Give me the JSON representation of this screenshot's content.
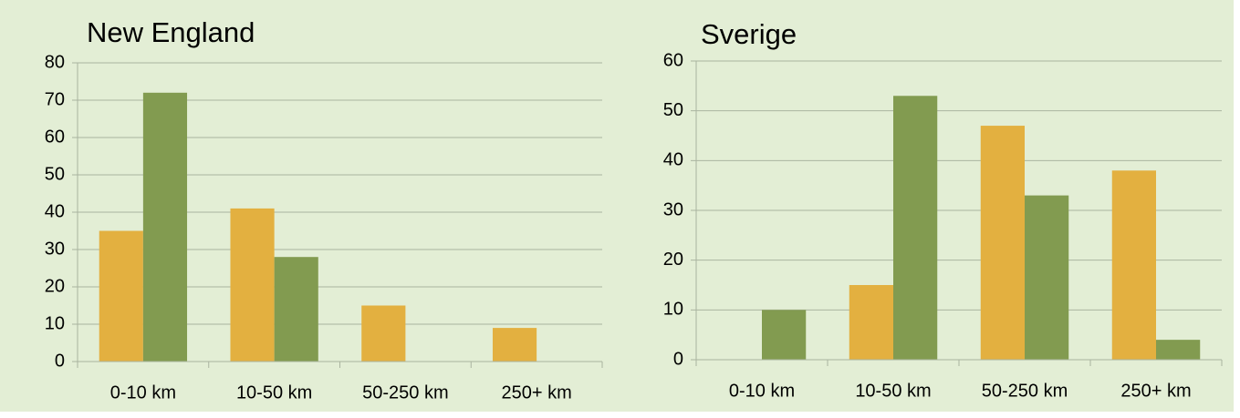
{
  "chart_data": [
    {
      "type": "bar",
      "title": "New England",
      "categories": [
        "0-10 km",
        "10-50 km",
        "50-250 km",
        "250+ km"
      ],
      "series": [
        {
          "color": "#e3b040",
          "values": [
            35,
            41,
            15,
            9
          ]
        },
        {
          "color": "#829b50",
          "values": [
            72,
            28,
            0,
            0
          ]
        }
      ],
      "ylim": [
        0,
        80
      ],
      "yticks": [
        0,
        10,
        20,
        30,
        40,
        50,
        60,
        70,
        80
      ],
      "grid": true
    },
    {
      "type": "bar",
      "title": "Sverige",
      "categories": [
        "0-10 km",
        "10-50 km",
        "50-250 km",
        "250+ km"
      ],
      "series": [
        {
          "color": "#e3b040",
          "values": [
            0,
            15,
            47,
            38
          ]
        },
        {
          "color": "#829b50",
          "values": [
            10,
            53,
            33,
            4
          ]
        }
      ],
      "ylim": [
        0,
        60
      ],
      "yticks": [
        0,
        10,
        20,
        30,
        40,
        50,
        60
      ],
      "grid": true
    }
  ]
}
